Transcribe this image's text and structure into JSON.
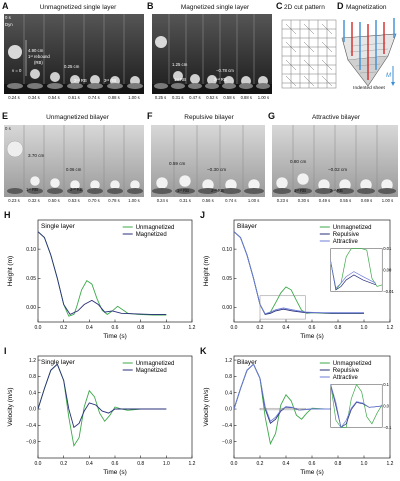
{
  "panels": {
    "A": {
      "letter": "A",
      "title": "Unmagnetized single layer",
      "times": [
        "0.24 s",
        "0.34 s",
        "0.54 s",
        "0.61 s",
        "0.74 s",
        "0.88 s",
        "1.00 s"
      ],
      "annotations": {
        "v0": "v = 0",
        "h1": "4.90 cm",
        "rb1": "1ˢᵗ rebound",
        "rb1b": "(RB)",
        "h2": "0.25 cm",
        "rb2": "2ⁿᵈ RB",
        "rb3": "3ʳᵈ RB",
        "tag": "0 s",
        "dyn": "Dyn"
      }
    },
    "B": {
      "letter": "B",
      "title": "Magnetized single layer",
      "times": [
        "0.25 s",
        "0.31 s",
        "0.47 s",
        "0.52 s",
        "0.58 s",
        "0.88 s",
        "1.00 s"
      ],
      "annotations": {
        "h1": "1.25 cm",
        "h2": "−0.78 cm",
        "rb1": "1ˢᵗ RB",
        "rb2": "2ⁿᵈ RB"
      }
    },
    "C": {
      "letter": "C",
      "title": "2D cut pattern"
    },
    "D": {
      "letter": "D",
      "title": "Magnetization",
      "caption": "Indented sheet",
      "m": "M"
    },
    "E": {
      "letter": "E",
      "title": "Unmagnetized bilayer",
      "times": [
        "0.23 s",
        "0.32 s",
        "0.50 s",
        "0.53 s",
        "0.70 s",
        "0.78 s",
        "1.00 s"
      ],
      "annotations": {
        "t0": "0 s",
        "h1": "3.70 cm",
        "h2": "0.06 cm",
        "rb1": "1ˢᵗ RB",
        "rb2": "2ⁿᵈ RB"
      }
    },
    "F": {
      "letter": "F",
      "title": "Repulsive bilayer",
      "times": [
        "0.24 s",
        "0.31 s",
        "0.56 s",
        "0.74 s",
        "1.00 s"
      ],
      "annotations": {
        "h1": "0.59 cm",
        "h2": "−0.30 cm",
        "rb1": "1ˢᵗ RB",
        "rb2": "2ⁿᵈ RB"
      }
    },
    "G": {
      "letter": "G",
      "title": "Attractive bilayer",
      "times": [
        "0.23 s",
        "0.30 s",
        "0.49 s",
        "0.55 s",
        "0.69 s",
        "1.00 s"
      ],
      "annotations": {
        "h1": "0.80 cm",
        "h2": "−0.02 cm",
        "rb1": "1ˢᵗ RB",
        "rb2": "2ⁿᵈ RB"
      }
    },
    "H": {
      "letter": "H"
    },
    "I": {
      "letter": "I"
    },
    "J": {
      "letter": "J"
    },
    "K": {
      "letter": "K"
    }
  },
  "colors": {
    "green": "#3daa4a",
    "navy": "#2a2f7a",
    "blue": "#6c7cd8",
    "red": "#d22828",
    "cyan": "#3b8fd4"
  },
  "chart_data": [
    {
      "id": "H",
      "type": "line",
      "title": "Single layer",
      "xlabel": "Time (s)",
      "ylabel": "Height (m)",
      "xlim": [
        0,
        1.2
      ],
      "ylim": [
        -0.025,
        0.15
      ],
      "xticks": [
        0,
        0.2,
        0.4,
        0.6,
        0.8,
        1.0,
        1.2
      ],
      "yticks": [
        0,
        0.05,
        0.1
      ],
      "xtick_labels": [
        "0.0",
        "0.2",
        "0.4",
        "0.6",
        "0.8",
        "1.0",
        "1.2"
      ],
      "ytick_labels": [
        "0.00",
        "0.05",
        "0.10"
      ],
      "legend": "top-right",
      "series": [
        {
          "name": "Unmagnetized",
          "color": "#3daa4a",
          "x": [
            0,
            0.05,
            0.1,
            0.15,
            0.2,
            0.24,
            0.28,
            0.3,
            0.34,
            0.38,
            0.42,
            0.46,
            0.5,
            0.54,
            0.58,
            0.62,
            0.66,
            0.7,
            0.78,
            0.9,
            1.0
          ],
          "y": [
            0.13,
            0.12,
            0.09,
            0.05,
            0.005,
            -0.015,
            -0.012,
            0.0,
            0.03,
            0.046,
            0.04,
            0.015,
            -0.005,
            -0.012,
            -0.006,
            0.002,
            -0.004,
            -0.01,
            -0.012,
            -0.013,
            -0.013
          ]
        },
        {
          "name": "Magnetized",
          "color": "#2a2f7a",
          "x": [
            0,
            0.05,
            0.1,
            0.15,
            0.2,
            0.25,
            0.31,
            0.36,
            0.42,
            0.47,
            0.52,
            0.58,
            0.65,
            0.75,
            0.88,
            1.0
          ],
          "y": [
            0.13,
            0.12,
            0.09,
            0.05,
            0.005,
            -0.012,
            -0.006,
            0.005,
            0.012,
            0.005,
            -0.008,
            -0.006,
            -0.01,
            -0.011,
            -0.012,
            -0.012
          ]
        }
      ]
    },
    {
      "id": "I",
      "type": "line",
      "title": "Single layer",
      "xlabel": "Time (s)",
      "ylabel": "Velocity (m/s)",
      "xlim": [
        0,
        1.2
      ],
      "ylim": [
        -1.2,
        1.3
      ],
      "xticks": [
        0,
        0.2,
        0.4,
        0.6,
        0.8,
        1.0,
        1.2
      ],
      "yticks": [
        -0.8,
        -0.4,
        0.0,
        0.4,
        0.8,
        1.2
      ],
      "xtick_labels": [
        "0.0",
        "0.2",
        "0.4",
        "0.6",
        "0.8",
        "1.0",
        "1.2"
      ],
      "ytick_labels": [
        "−0.8",
        "−0.4",
        "0.0",
        "0.4",
        "0.8",
        "1.2"
      ],
      "legend": "top-right",
      "series": [
        {
          "name": "Unmagnetized",
          "color": "#3daa4a",
          "x": [
            0,
            0.05,
            0.1,
            0.15,
            0.2,
            0.24,
            0.28,
            0.32,
            0.36,
            0.4,
            0.44,
            0.48,
            0.52,
            0.56,
            0.6,
            0.65,
            0.7,
            0.8,
            0.9,
            1.0
          ],
          "y": [
            0.0,
            0.5,
            0.95,
            1.1,
            0.7,
            -0.2,
            -0.9,
            -0.7,
            0.05,
            0.45,
            0.3,
            -0.1,
            -0.3,
            -0.15,
            0.05,
            0.0,
            -0.03,
            0.0,
            0.0,
            0.0
          ]
        },
        {
          "name": "Magnetized",
          "color": "#2a2f7a",
          "x": [
            0,
            0.05,
            0.1,
            0.15,
            0.2,
            0.24,
            0.28,
            0.32,
            0.36,
            0.4,
            0.45,
            0.5,
            0.55,
            0.6,
            0.7,
            0.8,
            0.9,
            1.0
          ],
          "y": [
            0.0,
            0.5,
            0.95,
            1.1,
            0.7,
            0.0,
            -0.45,
            -0.35,
            -0.05,
            0.15,
            0.1,
            -0.05,
            -0.1,
            0.0,
            0.0,
            0.0,
            0.0,
            0.0
          ]
        }
      ]
    },
    {
      "id": "J",
      "type": "line",
      "title": "Bilayer",
      "xlabel": "Time (s)",
      "ylabel": "Height (m)",
      "xlim": [
        0,
        1.2
      ],
      "ylim": [
        -0.025,
        0.15
      ],
      "xticks": [
        0,
        0.2,
        0.4,
        0.6,
        0.8,
        1.0,
        1.2
      ],
      "yticks": [
        0,
        0.05,
        0.1
      ],
      "xtick_labels": [
        "0.0",
        "0.2",
        "0.4",
        "0.6",
        "0.8",
        "1.0",
        "1.2"
      ],
      "ytick_labels": [
        "0.00",
        "0.05",
        "0.10"
      ],
      "legend": "top-right",
      "inset": {
        "yticks": [
          -0.01,
          0.0,
          0.01
        ],
        "ytick_labels": [
          "−0.01",
          "0.00",
          "0.01"
        ]
      },
      "series": [
        {
          "name": "Unmagnetized",
          "color": "#3daa4a",
          "x": [
            0,
            0.05,
            0.1,
            0.15,
            0.2,
            0.24,
            0.28,
            0.32,
            0.36,
            0.4,
            0.44,
            0.48,
            0.52,
            0.56,
            0.6,
            0.7,
            0.8,
            0.9,
            1.0
          ],
          "y": [
            0.13,
            0.12,
            0.09,
            0.05,
            0.005,
            -0.012,
            -0.008,
            0.008,
            0.025,
            0.035,
            0.03,
            0.012,
            -0.005,
            -0.01,
            -0.009,
            -0.01,
            -0.01,
            -0.01,
            -0.01
          ]
        },
        {
          "name": "Repulsive",
          "color": "#2a2f7a",
          "x": [
            0,
            0.05,
            0.1,
            0.15,
            0.2,
            0.24,
            0.28,
            0.32,
            0.38,
            0.45,
            0.55,
            0.65,
            0.75,
            0.85,
            1.0
          ],
          "y": [
            0.13,
            0.12,
            0.09,
            0.05,
            0.005,
            -0.012,
            -0.01,
            -0.006,
            -0.003,
            -0.006,
            -0.009,
            -0.009,
            -0.01,
            -0.01,
            -0.01
          ]
        },
        {
          "name": "Attractive",
          "color": "#6c7cd8",
          "x": [
            0,
            0.05,
            0.1,
            0.15,
            0.2,
            0.24,
            0.28,
            0.32,
            0.38,
            0.45,
            0.55,
            0.65,
            0.75,
            0.85,
            1.0
          ],
          "y": [
            0.13,
            0.12,
            0.09,
            0.05,
            0.005,
            -0.011,
            -0.008,
            -0.004,
            -0.001,
            -0.004,
            -0.008,
            -0.009,
            -0.009,
            -0.009,
            -0.009
          ]
        }
      ]
    },
    {
      "id": "K",
      "type": "line",
      "title": "Bilayer",
      "xlabel": "Time (s)",
      "ylabel": "Velocity (m/s)",
      "xlim": [
        0,
        1.2
      ],
      "ylim": [
        -1.2,
        1.3
      ],
      "xticks": [
        0,
        0.2,
        0.4,
        0.6,
        0.8,
        1.0,
        1.2
      ],
      "yticks": [
        -0.8,
        -0.4,
        0.0,
        0.4,
        0.8,
        1.2
      ],
      "xtick_labels": [
        "0.0",
        "0.2",
        "0.4",
        "0.6",
        "0.8",
        "1.0",
        "1.2"
      ],
      "ytick_labels": [
        "−0.8",
        "−0.4",
        "0.0",
        "0.4",
        "0.8",
        "1.2"
      ],
      "legend": "top-right",
      "inset": {
        "yticks": [
          -0.1,
          0.0,
          0.1
        ],
        "ytick_labels": [
          "−0.1",
          "0.0",
          "0.1"
        ]
      },
      "series": [
        {
          "name": "Unmagnetized",
          "color": "#3daa4a",
          "x": [
            0,
            0.05,
            0.1,
            0.15,
            0.2,
            0.24,
            0.28,
            0.32,
            0.36,
            0.4,
            0.44,
            0.48,
            0.52,
            0.56,
            0.6,
            0.7,
            0.8,
            0.9,
            1.0
          ],
          "y": [
            0.0,
            0.5,
            0.95,
            1.1,
            0.75,
            -0.2,
            -0.85,
            -0.6,
            0.1,
            0.35,
            0.2,
            -0.15,
            -0.25,
            -0.1,
            0.02,
            0.0,
            0.0,
            0.0,
            0.0
          ]
        },
        {
          "name": "Repulsive",
          "color": "#2a2f7a",
          "x": [
            0,
            0.05,
            0.1,
            0.15,
            0.2,
            0.24,
            0.28,
            0.32,
            0.36,
            0.4,
            0.45,
            0.5,
            0.6,
            0.7,
            0.8,
            0.9,
            1.0
          ],
          "y": [
            0.0,
            0.5,
            0.95,
            1.1,
            0.75,
            0.0,
            -0.35,
            -0.25,
            -0.05,
            0.05,
            0.03,
            -0.02,
            0.0,
            0.0,
            0.0,
            0.0,
            0.0
          ]
        },
        {
          "name": "Attractive",
          "color": "#6c7cd8",
          "x": [
            0,
            0.05,
            0.1,
            0.15,
            0.2,
            0.24,
            0.28,
            0.32,
            0.36,
            0.4,
            0.45,
            0.5,
            0.6,
            0.7,
            0.8,
            0.9,
            1.0
          ],
          "y": [
            0.0,
            0.5,
            0.95,
            1.1,
            0.75,
            0.05,
            -0.3,
            -0.2,
            -0.03,
            0.06,
            0.04,
            -0.02,
            0.0,
            0.0,
            0.0,
            0.0,
            0.0
          ]
        }
      ]
    }
  ]
}
